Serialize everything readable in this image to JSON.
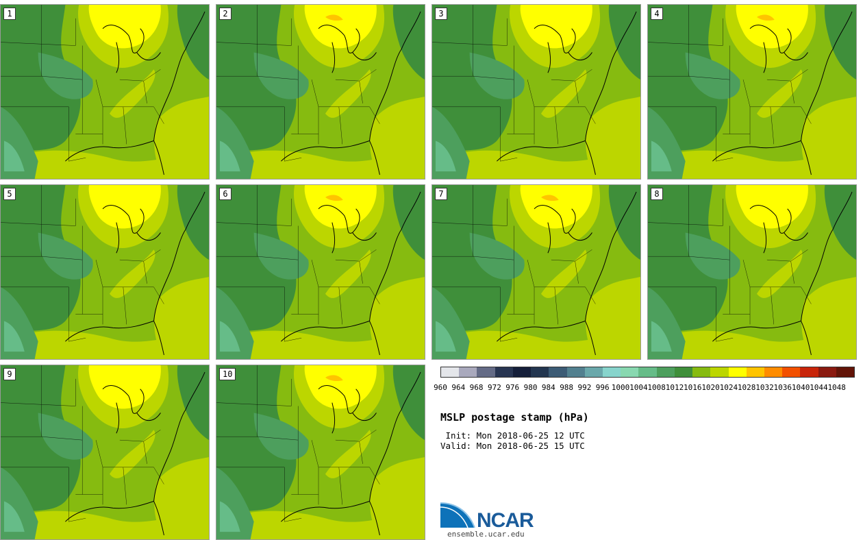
{
  "figure": {
    "title": "MSLP postage stamp (hPa)",
    "init_line": " Init: Mon 2018-06-25 12 UTC",
    "valid_line": "Valid: Mon 2018-06-25 15 UTC"
  },
  "members": [
    {
      "label": "1",
      "orange": false
    },
    {
      "label": "2",
      "orange": true
    },
    {
      "label": "3",
      "orange": false
    },
    {
      "label": "4",
      "orange": true
    },
    {
      "label": "5",
      "orange": false
    },
    {
      "label": "6",
      "orange": true
    },
    {
      "label": "7",
      "orange": true
    },
    {
      "label": "8",
      "orange": false
    },
    {
      "label": "9",
      "orange": false
    },
    {
      "label": "10",
      "orange": true
    }
  ],
  "colorbar": {
    "labels": [
      "960",
      "964",
      "968",
      "972",
      "976",
      "980",
      "984",
      "988",
      "992",
      "996",
      "1000",
      "1004",
      "1008",
      "1012",
      "1016",
      "1020",
      "1024",
      "1028",
      "1032",
      "1036",
      "1040",
      "1044",
      "1048"
    ],
    "colors": [
      "#e4e6ea",
      "#a9a9bd",
      "#646b86",
      "#283552",
      "#151f3a",
      "#233650",
      "#3c5b75",
      "#52808f",
      "#6aa8ab",
      "#87d4cc",
      "#88d8b0",
      "#66bc88",
      "#4d9f5d",
      "#3f8f3a",
      "#86bb10",
      "#bcd600",
      "#ffff00",
      "#ffc400",
      "#ff8c00",
      "#f25000",
      "#c8250a",
      "#8a1a10",
      "#621408"
    ],
    "map_colors": {
      "c1008": "#66bc88",
      "c1012": "#4d9f5d",
      "c1016": "#3f8f3a",
      "c1020": "#86bb10",
      "c1024": "#bcd600",
      "c1028": "#ffff00",
      "c1032": "#ffc400",
      "c1036": "#ff8c00"
    }
  },
  "logo": {
    "name": "NCAR",
    "url": "ensemble.ucar.edu"
  }
}
